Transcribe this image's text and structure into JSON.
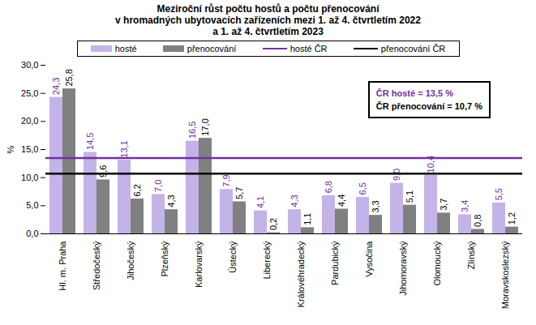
{
  "chart_data": {
    "type": "bar",
    "title": "Meziroční růst počtu hostů a počtu přenocování\nv hromadných ubytovacích zařízeních mezi 1. až 4. čtvrtletím 2022\na 1. až 4. čtvrtletím 2023",
    "y_label": "%",
    "categories": [
      "Hl. m. Praha",
      "Středočeský",
      "Jihočeský",
      "Plzeňský",
      "Karlovarský",
      "Ústecký",
      "Liberecký",
      "Královéhradecký",
      "Pardubický",
      "Vysočina",
      "Jihomoravský",
      "Olomoucký",
      "Zlínský",
      "Moravskoslezský"
    ],
    "series": [
      {
        "name": "hosté",
        "color": "#c3b3e6",
        "values": [
          24.3,
          14.5,
          13.1,
          7.0,
          16.5,
          7.9,
          4.1,
          4.3,
          6.8,
          6.5,
          9.0,
          10.4,
          3.4,
          5.5
        ],
        "value_labels": [
          "24,3",
          "14,5",
          "13,1",
          "7,0",
          "16,5",
          "7,9",
          "4,1",
          "4,3",
          "6,8",
          "6,5",
          "9,0",
          "10,4",
          "3,4",
          "5,5"
        ]
      },
      {
        "name": "přenocování",
        "color": "#808080",
        "values": [
          25.8,
          9.6,
          6.2,
          4.3,
          17.0,
          5.7,
          0.2,
          1.1,
          4.4,
          3.3,
          5.1,
          3.7,
          0.8,
          1.2
        ],
        "value_labels": [
          "25,8",
          "9,6",
          "6,2",
          "4,3",
          "17,0",
          "5,7",
          "0,2",
          "1,1",
          "4,4",
          "3,3",
          "5,1",
          "3,7",
          "0,8",
          "1,2"
        ]
      }
    ],
    "reference_lines": [
      {
        "name": "hosté ČR",
        "value": 13.5,
        "color": "#7030a0"
      },
      {
        "name": "přenocování ČR",
        "value": 10.7,
        "color": "#000000"
      }
    ],
    "annotations": [
      "ČR hosté = 13,5 %",
      "ČR přenocování = 10,7 %"
    ],
    "ylim": [
      0,
      30
    ],
    "yticks": [
      {
        "value": 0,
        "label": "0,0"
      },
      {
        "value": 5,
        "label": "5,0"
      },
      {
        "value": 10,
        "label": "10,0"
      },
      {
        "value": 15,
        "label": "15,0"
      },
      {
        "value": 20,
        "label": "20,0"
      },
      {
        "value": 25,
        "label": "25,0"
      },
      {
        "value": 30,
        "label": "30,0"
      }
    ],
    "grid": false,
    "legend": "top",
    "data_labels": true
  }
}
